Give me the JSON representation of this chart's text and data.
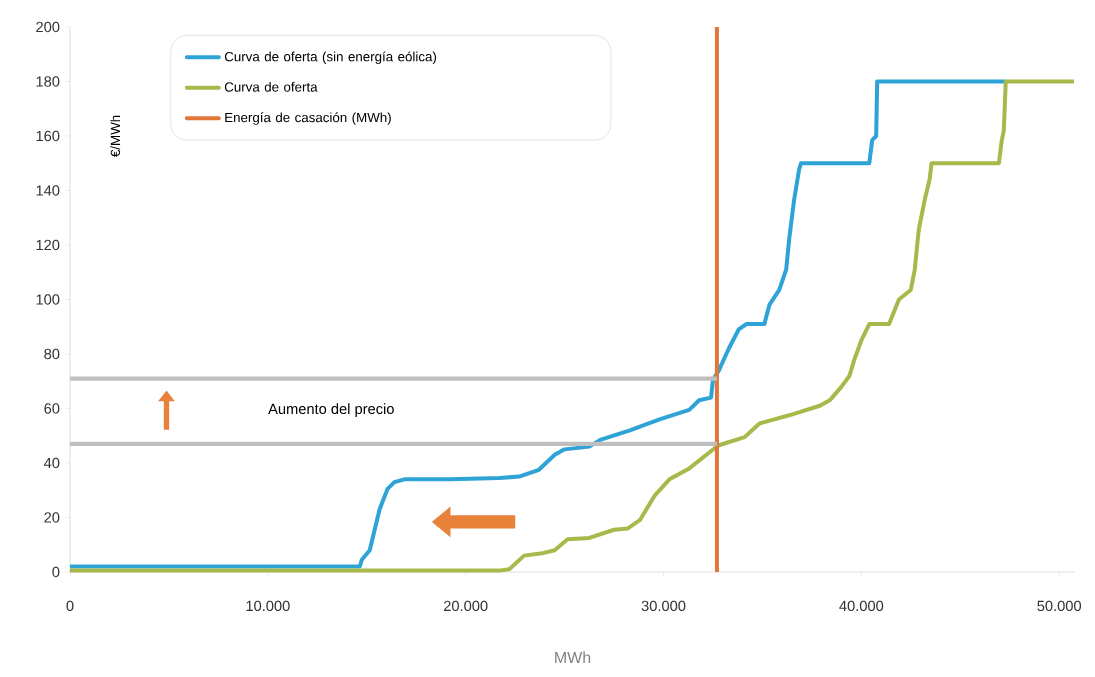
{
  "chart_data": {
    "type": "line",
    "xlabel": "MWh",
    "ylabel": "€/MWh",
    "xlim": [
      0,
      50800
    ],
    "ylim": [
      0,
      200
    ],
    "xticks": [
      0,
      {
        "value": 10000,
        "label": "10.000"
      },
      {
        "value": 20000,
        "label": "20.000"
      },
      {
        "value": 30000,
        "label": "30.000"
      },
      {
        "value": 40000,
        "label": "40.000"
      },
      {
        "value": 50000,
        "label": "50.000"
      }
    ],
    "yticks": [
      0,
      20,
      40,
      60,
      80,
      100,
      120,
      140,
      160,
      180,
      200
    ],
    "legend": "top left",
    "marker": "none",
    "annotations": [
      "Aumento del precio"
    ],
    "series": [
      {
        "name": "Curva de oferta (sin energía eólica)",
        "color": "#2ea3d6",
        "x": [
          0,
          14400,
          14650,
          14750,
          15150,
          15650,
          16050,
          16400,
          16900,
          19200,
          21700,
          22700,
          23700,
          24500,
          25000,
          26250,
          26800,
          28300,
          29800,
          31300,
          31800,
          32400,
          32500,
          32800,
          33300,
          33800,
          34200,
          35100,
          35350,
          35850,
          36200,
          36350,
          36600,
          36850,
          36950,
          40400,
          40550,
          40750,
          40800,
          47300
        ],
        "values": [
          2,
          2,
          2,
          4.5,
          8,
          23,
          30.5,
          33,
          34,
          34,
          34.5,
          35,
          37.5,
          43,
          45,
          46,
          48.5,
          52,
          56,
          59.5,
          63,
          64,
          70.5,
          74,
          82,
          89,
          91,
          91,
          98,
          103.5,
          111,
          122,
          136.5,
          147.5,
          150,
          150,
          158.5,
          160,
          180,
          180
        ]
      },
      {
        "name": "Curva de oferta",
        "color": "#a9b84a",
        "x": [
          0,
          21700,
          22200,
          22950,
          23950,
          24500,
          25150,
          26250,
          27500,
          28200,
          28800,
          29550,
          30300,
          31300,
          32600,
          32800,
          34100,
          34850,
          36350,
          37900,
          38400,
          39000,
          39400,
          39650,
          40000,
          40400,
          41400,
          41900,
          42500,
          42700,
          42900,
          43200,
          43450,
          43550,
          46950,
          47100,
          47200,
          47300,
          50750
        ],
        "values": [
          0.5,
          0.5,
          1,
          6,
          7,
          8,
          12,
          12.5,
          15.5,
          16,
          19,
          28,
          34,
          38,
          45.5,
          46.5,
          49.5,
          54.5,
          57.5,
          61,
          63,
          68,
          72,
          78,
          85,
          91,
          91,
          100,
          103.5,
          111,
          125.5,
          136.5,
          144,
          150,
          150,
          158.5,
          162,
          180,
          180
        ]
      },
      {
        "name": "Energía de casación (MWh)",
        "color": "#e0763a",
        "x": [
          32700,
          32700
        ],
        "values": [
          0,
          200
        ]
      },
      {
        "color": "#bfbfbf",
        "x": [
          0,
          32700
        ],
        "values": [
          71,
          71
        ]
      },
      {
        "color": "#bfbfbf",
        "x": [
          0,
          32700
        ],
        "values": [
          47,
          47
        ]
      }
    ]
  }
}
